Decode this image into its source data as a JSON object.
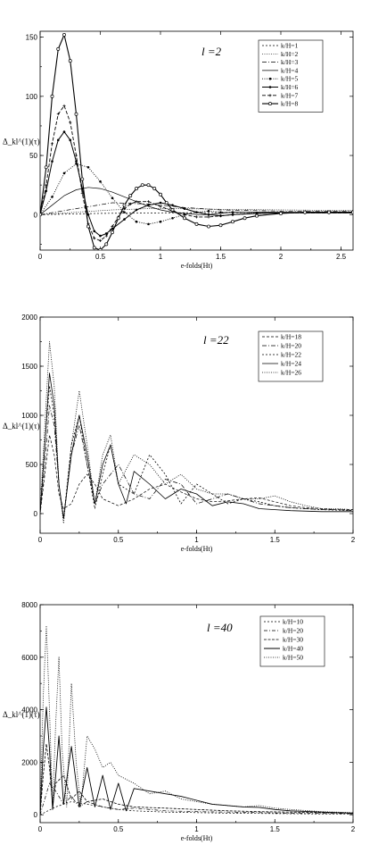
{
  "chart_data": [
    {
      "type": "line",
      "panel_label": "l =2",
      "xlabel": "e-folds(Ht)",
      "ylabel": "Δ_kl^(1)(τ)",
      "xlim": [
        0,
        2.6
      ],
      "ylim": [
        -30,
        155
      ],
      "xticks": [
        0,
        0.5,
        1,
        1.5,
        2,
        2.5
      ],
      "xtick_labels": [
        "0",
        "0.5",
        "1",
        "1.5",
        "2",
        "2.5"
      ],
      "yticks": [
        0,
        50,
        100,
        150
      ],
      "ytick_labels": [
        "0",
        "50",
        "100",
        "150"
      ],
      "legend_position": "top-right",
      "series": [
        {
          "name": "k/H=1",
          "x": [
            0,
            0.5,
            1,
            1.5,
            2,
            2.5,
            2.6
          ],
          "y": [
            0,
            1,
            1.5,
            1.7,
            1.8,
            1.9,
            1.9
          ]
        },
        {
          "name": "k/H=2",
          "x": [
            0,
            0.3,
            0.6,
            0.9,
            1.2,
            1.5,
            2,
            2.5,
            2.6
          ],
          "y": [
            0,
            2,
            4,
            5,
            5,
            4.5,
            4,
            3.5,
            3.5
          ]
        },
        {
          "name": "k/H=3",
          "x": [
            0,
            0.3,
            0.6,
            0.9,
            1.2,
            1.5,
            2,
            2.5,
            2.6
          ],
          "y": [
            0,
            5,
            10,
            9,
            6,
            4,
            3,
            3,
            3
          ]
        },
        {
          "name": "k/H=4",
          "x": [
            0,
            0.1,
            0.2,
            0.3,
            0.4,
            0.5,
            0.6,
            0.7,
            0.8,
            0.9,
            1.0,
            1.1,
            1.2,
            1.3,
            1.4,
            1.5,
            1.6,
            1.8,
            2.0,
            2.2,
            2.4,
            2.6
          ],
          "y": [
            0,
            8,
            16,
            21,
            23,
            22,
            19,
            15,
            11,
            7,
            4,
            2,
            1,
            0,
            0,
            1,
            2,
            2,
            2,
            2,
            2,
            2
          ]
        },
        {
          "name": "k/H=5",
          "x": [
            0,
            0.1,
            0.2,
            0.3,
            0.4,
            0.5,
            0.6,
            0.7,
            0.8,
            0.9,
            1.0,
            1.1,
            1.2,
            1.3,
            1.4,
            1.5,
            1.6,
            1.8,
            2.0,
            2.2,
            2.4,
            2.6
          ],
          "y": [
            0,
            15,
            35,
            43,
            40,
            28,
            14,
            2,
            -6,
            -8,
            -6,
            -3,
            0,
            2,
            3,
            2,
            2,
            1.5,
            1.5,
            1.5,
            1.5,
            1.5
          ]
        },
        {
          "name": "k/H=6",
          "x": [
            0,
            0.05,
            0.1,
            0.15,
            0.2,
            0.25,
            0.3,
            0.35,
            0.4,
            0.45,
            0.5,
            0.55,
            0.6,
            0.7,
            0.8,
            0.9,
            1.0,
            1.1,
            1.2,
            1.3,
            1.4,
            1.5,
            1.6,
            1.8,
            2.0,
            2.2,
            2.4,
            2.6
          ],
          "y": [
            0,
            20,
            45,
            63,
            70,
            63,
            45,
            22,
            0,
            -14,
            -18,
            -16,
            -12,
            -4,
            4,
            8,
            10,
            8,
            5,
            2,
            0,
            -1,
            0,
            1,
            1.5,
            1.5,
            1.5,
            1.5
          ]
        },
        {
          "name": "k/H=7",
          "x": [
            0,
            0.05,
            0.1,
            0.15,
            0.2,
            0.25,
            0.3,
            0.35,
            0.4,
            0.45,
            0.5,
            0.55,
            0.6,
            0.65,
            0.7,
            0.75,
            0.8,
            0.9,
            1.0,
            1.1,
            1.2,
            1.3,
            1.4,
            1.5,
            1.6,
            1.8,
            2.0,
            2.2,
            2.4,
            2.6
          ],
          "y": [
            0,
            25,
            60,
            85,
            92,
            78,
            50,
            18,
            -8,
            -20,
            -22,
            -18,
            -10,
            -2,
            5,
            9,
            11,
            11,
            7,
            3,
            0,
            -2,
            -2,
            -1,
            0,
            1,
            1.5,
            1.5,
            1.5,
            1.5
          ]
        },
        {
          "name": "k/H=8",
          "x": [
            0,
            0.05,
            0.1,
            0.15,
            0.2,
            0.25,
            0.3,
            0.35,
            0.4,
            0.45,
            0.5,
            0.55,
            0.6,
            0.65,
            0.7,
            0.75,
            0.8,
            0.85,
            0.9,
            0.95,
            1.0,
            1.05,
            1.1,
            1.2,
            1.3,
            1.4,
            1.5,
            1.6,
            1.7,
            1.8,
            2.0,
            2.2,
            2.4,
            2.6
          ],
          "y": [
            0,
            40,
            100,
            140,
            152,
            130,
            85,
            30,
            -10,
            -28,
            -30,
            -25,
            -15,
            -3,
            8,
            16,
            22,
            25,
            25,
            22,
            17,
            10,
            4,
            -3,
            -8,
            -10,
            -9,
            -6,
            -3,
            -1,
            1,
            2,
            2,
            2
          ]
        }
      ]
    },
    {
      "type": "line",
      "panel_label": "l =22",
      "xlabel": "e-folds(Ht)",
      "ylabel": "Δ_kl^(1)(τ)",
      "xlim": [
        0,
        2
      ],
      "ylim": [
        -200,
        2000
      ],
      "xticks": [
        0,
        0.5,
        1,
        1.5,
        2
      ],
      "xtick_labels": [
        "0",
        "0.5",
        "1",
        "1.5",
        "2"
      ],
      "yticks": [
        0,
        500,
        1000,
        1500,
        2000
      ],
      "ytick_labels": [
        "0",
        "500",
        "1000",
        "1500",
        "2000"
      ],
      "legend_position": "top-right",
      "series": [
        {
          "name": "k/H=18",
          "x": [
            0,
            0.03,
            0.06,
            0.09,
            0.12,
            0.15,
            0.2,
            0.25,
            0.3,
            0.35,
            0.4,
            0.5,
            0.6,
            0.7,
            0.8,
            0.9,
            1.0,
            1.1,
            1.2,
            1.3,
            1.4,
            1.5,
            1.6,
            1.7,
            1.8,
            1.9,
            2.0
          ],
          "y": [
            0,
            400,
            800,
            600,
            200,
            50,
            100,
            300,
            400,
            300,
            150,
            80,
            150,
            250,
            300,
            220,
            150,
            120,
            130,
            150,
            160,
            120,
            80,
            60,
            50,
            40,
            40
          ]
        },
        {
          "name": "k/H=20",
          "x": [
            0,
            0.03,
            0.06,
            0.09,
            0.12,
            0.15,
            0.2,
            0.25,
            0.3,
            0.35,
            0.4,
            0.5,
            0.6,
            0.7,
            0.8,
            0.9,
            1.0,
            1.1,
            1.2,
            1.3,
            1.4,
            1.5,
            1.6,
            1.7,
            1.8,
            1.9,
            2.0
          ],
          "y": [
            0,
            500,
            1100,
            900,
            300,
            -50,
            600,
            900,
            500,
            100,
            300,
            500,
            200,
            150,
            350,
            300,
            100,
            150,
            200,
            150,
            100,
            80,
            60,
            50,
            40,
            40,
            30
          ]
        },
        {
          "name": "k/H=22",
          "x": [
            0,
            0.03,
            0.06,
            0.09,
            0.12,
            0.15,
            0.2,
            0.25,
            0.3,
            0.35,
            0.4,
            0.45,
            0.5,
            0.6,
            0.7,
            0.8,
            0.9,
            1.0,
            1.1,
            1.2,
            1.3,
            1.4,
            1.5,
            1.6,
            1.8,
            2.0
          ],
          "y": [
            0,
            700,
            1300,
            1000,
            300,
            -50,
            700,
            1000,
            500,
            50,
            400,
            700,
            300,
            200,
            600,
            400,
            100,
            300,
            200,
            100,
            150,
            120,
            80,
            60,
            40,
            30
          ]
        },
        {
          "name": "k/H=24",
          "x": [
            0,
            0.03,
            0.06,
            0.09,
            0.12,
            0.15,
            0.2,
            0.25,
            0.3,
            0.35,
            0.4,
            0.45,
            0.5,
            0.55,
            0.6,
            0.7,
            0.8,
            0.9,
            1.0,
            1.1,
            1.2,
            1.3,
            1.4,
            1.5,
            1.6,
            1.8,
            2.0
          ],
          "y": [
            0,
            700,
            1430,
            1100,
            300,
            -50,
            600,
            1000,
            600,
            100,
            500,
            700,
            300,
            100,
            430,
            300,
            150,
            250,
            200,
            80,
            120,
            100,
            50,
            40,
            30,
            20,
            20
          ]
        },
        {
          "name": "k/H=26",
          "x": [
            0,
            0.03,
            0.06,
            0.09,
            0.12,
            0.15,
            0.2,
            0.25,
            0.3,
            0.35,
            0.4,
            0.45,
            0.5,
            0.6,
            0.7,
            0.8,
            0.9,
            1.0,
            1.1,
            1.2,
            1.3,
            1.4,
            1.5,
            1.6,
            1.7,
            1.8,
            1.9,
            2.0
          ],
          "y": [
            0,
            900,
            1750,
            1300,
            300,
            -100,
            700,
            1250,
            700,
            100,
            600,
            800,
            300,
            600,
            500,
            300,
            400,
            250,
            200,
            200,
            150,
            150,
            180,
            120,
            80,
            50,
            50,
            40
          ]
        }
      ]
    },
    {
      "type": "line",
      "panel_label": "l =40",
      "xlabel": "e-folds(Ht)",
      "ylabel": "Δ_kl^(1)(τ)",
      "xlim": [
        0,
        2
      ],
      "ylim": [
        -300,
        8000
      ],
      "xticks": [
        0,
        0.5,
        1,
        1.5,
        2
      ],
      "xtick_labels": [
        "0",
        "0.5",
        "1",
        "1.5",
        "2"
      ],
      "yticks": [
        0,
        2000,
        4000,
        6000,
        8000
      ],
      "ytick_labels": [
        "0",
        "2000",
        "4000",
        "6000",
        "8000"
      ],
      "legend_position": "top-right",
      "series": [
        {
          "name": "k/H=10",
          "x": [
            0,
            0.1,
            0.2,
            0.3,
            0.4,
            0.5,
            0.6,
            0.8,
            1.0,
            1.2,
            1.4,
            1.6,
            1.8,
            2.0
          ],
          "y": [
            0,
            300,
            500,
            400,
            300,
            200,
            150,
            100,
            80,
            60,
            50,
            40,
            30,
            30
          ]
        },
        {
          "name": "k/H=20",
          "x": [
            0,
            0.03,
            0.06,
            0.1,
            0.15,
            0.2,
            0.25,
            0.3,
            0.4,
            0.5,
            0.6,
            0.8,
            1.0,
            1.2,
            1.4,
            1.6,
            1.8,
            2.0
          ],
          "y": [
            0,
            600,
            1200,
            900,
            400,
            700,
            300,
            500,
            300,
            200,
            250,
            150,
            120,
            100,
            80,
            60,
            50,
            40
          ]
        },
        {
          "name": "k/H=30",
          "x": [
            0,
            0.02,
            0.04,
            0.06,
            0.08,
            0.1,
            0.15,
            0.2,
            0.25,
            0.3,
            0.4,
            0.5,
            0.6,
            0.8,
            1.0,
            1.2,
            1.4,
            1.6,
            1.8,
            2.0
          ],
          "y": [
            0,
            1500,
            2700,
            1800,
            400,
            1200,
            1500,
            600,
            900,
            500,
            600,
            400,
            300,
            250,
            200,
            150,
            120,
            100,
            80,
            60
          ]
        },
        {
          "name": "k/H=40",
          "x": [
            0,
            0.02,
            0.04,
            0.06,
            0.08,
            0.1,
            0.12,
            0.15,
            0.18,
            0.2,
            0.25,
            0.3,
            0.35,
            0.4,
            0.45,
            0.5,
            0.55,
            0.6,
            0.7,
            0.8,
            0.9,
            1.0,
            1.1,
            1.2,
            1.3,
            1.4,
            1.5,
            1.6,
            1.8,
            2.0
          ],
          "y": [
            0,
            2500,
            4100,
            2500,
            200,
            1500,
            3000,
            400,
            1800,
            2600,
            300,
            1800,
            300,
            1500,
            200,
            1200,
            150,
            1000,
            900,
            800,
            700,
            550,
            400,
            350,
            300,
            280,
            200,
            150,
            100,
            60
          ]
        },
        {
          "name": "k/H=50",
          "x": [
            0,
            0.02,
            0.04,
            0.06,
            0.08,
            0.1,
            0.12,
            0.14,
            0.17,
            0.2,
            0.23,
            0.26,
            0.3,
            0.35,
            0.4,
            0.45,
            0.5,
            0.6,
            0.7,
            0.8,
            0.9,
            1.0,
            1.1,
            1.2,
            1.3,
            1.4,
            1.5,
            1.6,
            1.8,
            2.0
          ],
          "y": [
            0,
            4500,
            7200,
            4000,
            300,
            3500,
            6000,
            2500,
            300,
            5000,
            2000,
            300,
            3000,
            2500,
            1800,
            2000,
            1500,
            1200,
            800,
            900,
            600,
            500,
            400,
            350,
            300,
            350,
            250,
            200,
            120,
            80
          ]
        }
      ]
    }
  ]
}
